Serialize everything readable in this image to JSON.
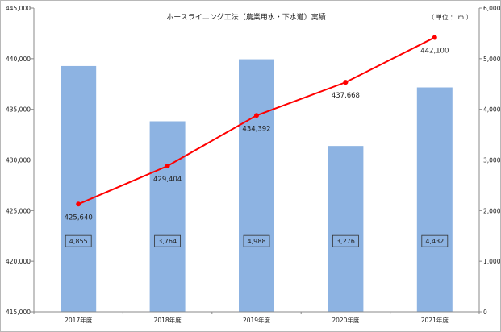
{
  "chart_data": {
    "type": "bar",
    "title": "ホースライニング工法（農業用水・下水道）実績",
    "unit_label": "（ 単位 ： m ）",
    "categories": [
      "2017年度",
      "2018年度",
      "2019年度",
      "2020年度",
      "2021年度"
    ],
    "series": [
      {
        "type": "bar",
        "axis": "right",
        "color": "#8db3e2",
        "values": [
          4855,
          3764,
          4988,
          3276,
          4432
        ],
        "labels": [
          "4,855",
          "3,764",
          "4,988",
          "3,276",
          "4,432"
        ]
      },
      {
        "type": "line",
        "axis": "left",
        "color": "#ff0000",
        "values": [
          425640,
          429404,
          434392,
          437668,
          442100
        ],
        "labels": [
          "425,640",
          "429,404",
          "434,392",
          "437,668",
          "442,100"
        ]
      }
    ],
    "y_left": {
      "range": [
        415000,
        445000
      ],
      "ticks": [
        415000,
        420000,
        425000,
        430000,
        435000,
        440000,
        445000
      ],
      "tick_labels": [
        "415,000",
        "420,000",
        "425,000",
        "430,000",
        "435,000",
        "440,000",
        "445,000"
      ]
    },
    "y_right": {
      "range": [
        0,
        6000
      ],
      "ticks": [
        0,
        1000,
        2000,
        3000,
        4000,
        5000,
        6000
      ],
      "tick_labels": [
        "0",
        "1,000",
        "2,000",
        "3,000",
        "4,000",
        "5,000",
        "6,000"
      ]
    },
    "grid": false,
    "legend": "none"
  }
}
